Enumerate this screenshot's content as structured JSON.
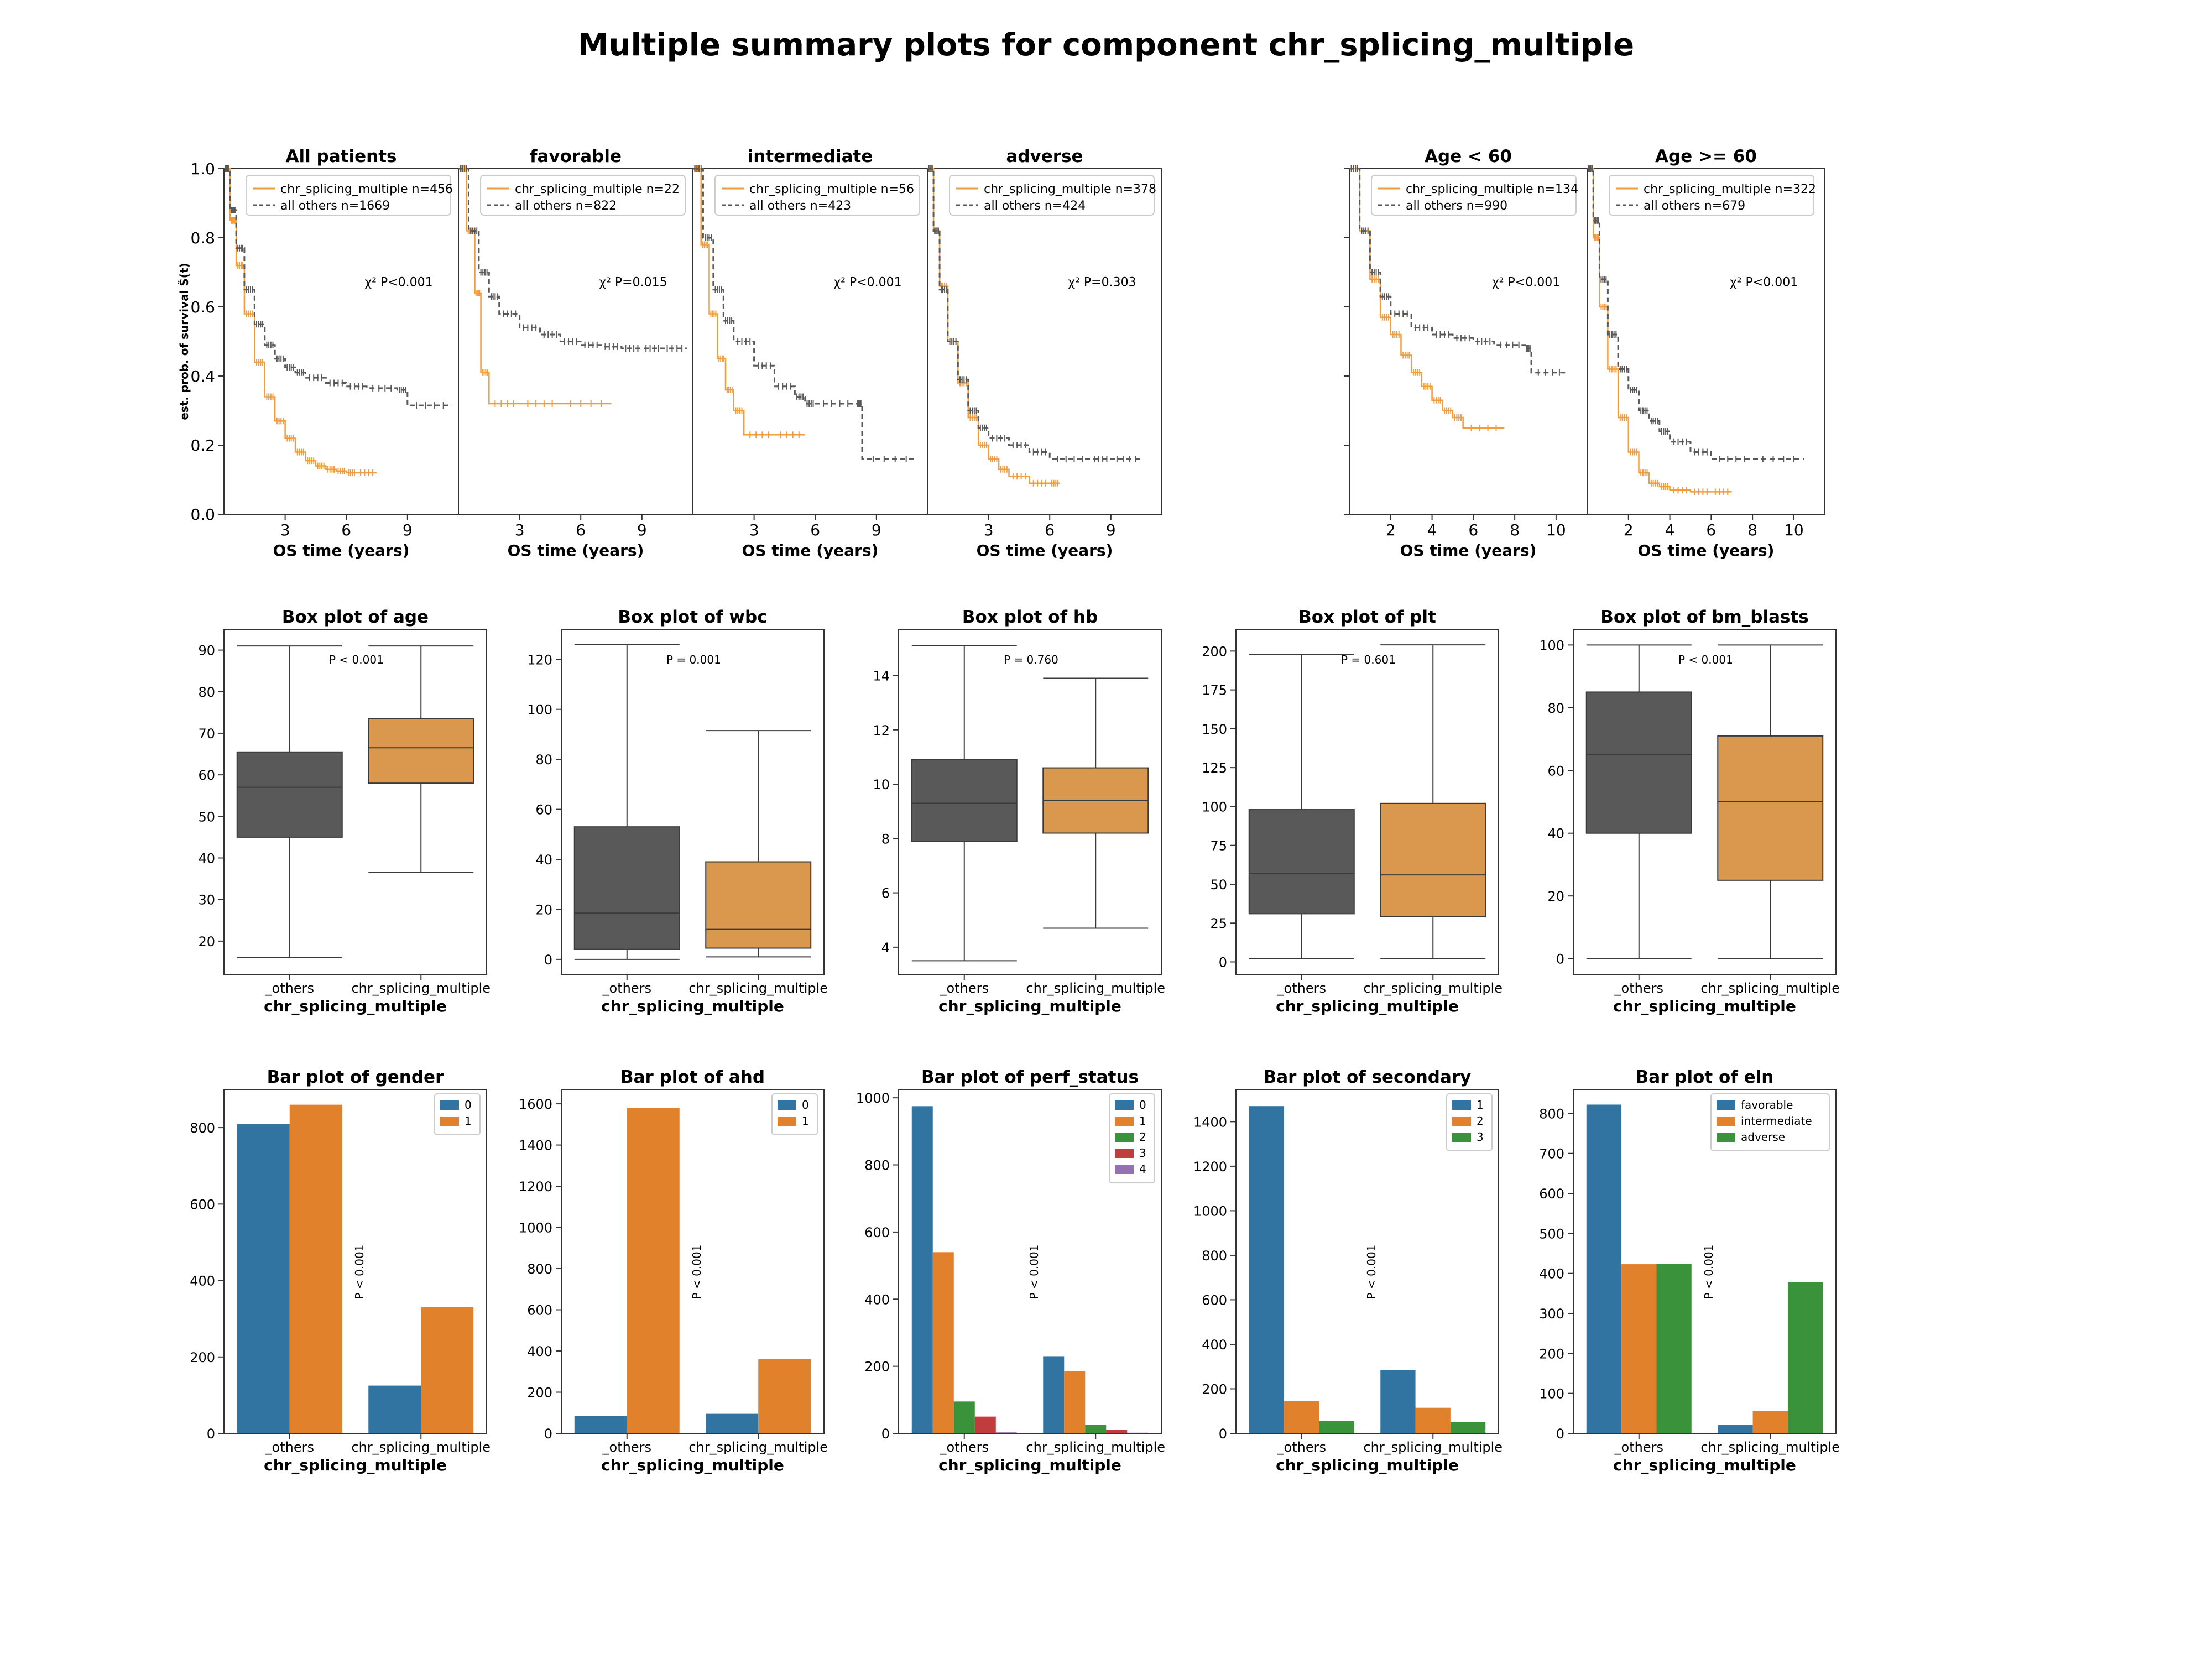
{
  "title": "Multiple summary plots for component chr_splicing_multiple",
  "colors": {
    "dark": "#595959",
    "orange": "#f39c3c",
    "box_orange": "#d9984e",
    "blue": "#3274a1",
    "bar_orange": "#e1812c",
    "green": "#3a923a",
    "red": "#c03d3e",
    "purple": "#9372b2"
  },
  "km": {
    "ylabel": "est. prob. of survival Ŝ(t)",
    "xlabel": "OS time (years)",
    "yticks": [
      "0.0",
      "0.2",
      "0.4",
      "0.6",
      "0.8",
      "1.0"
    ],
    "panels": [
      {
        "title": "All patients",
        "legend": [
          "chr_splicing_multiple n=456",
          "all others n=1669"
        ],
        "p": "χ² P<0.001",
        "xticks": [
          "3",
          "6",
          "9"
        ],
        "xlim": [
          0,
          11.5
        ],
        "chart_data": {
          "type": "line",
          "series": [
            {
              "name": "chr_splicing_multiple n=456",
              "x": [
                0,
                0.3,
                0.6,
                1,
                1.5,
                2,
                2.5,
                3,
                3.5,
                4,
                4.5,
                5,
                5.5,
                6,
                6.5,
                7.5
              ],
              "y": [
                1,
                0.85,
                0.72,
                0.58,
                0.44,
                0.34,
                0.27,
                0.22,
                0.18,
                0.155,
                0.14,
                0.13,
                0.125,
                0.12,
                0.12,
                0.12
              ]
            },
            {
              "name": "all others n=1669",
              "x": [
                0,
                0.3,
                0.6,
                1,
                1.5,
                2,
                2.5,
                3,
                3.5,
                4,
                5,
                6,
                7,
                8.5,
                9,
                11.2
              ],
              "y": [
                1,
                0.88,
                0.77,
                0.65,
                0.55,
                0.49,
                0.45,
                0.425,
                0.41,
                0.395,
                0.38,
                0.37,
                0.365,
                0.36,
                0.315,
                0.315
              ]
            }
          ]
        }
      },
      {
        "title": "favorable",
        "legend": [
          "chr_splicing_multiple n=22",
          "all others n=822"
        ],
        "p": "χ² P=0.015",
        "xticks": [
          "3",
          "6",
          "9"
        ],
        "xlim": [
          0,
          11.5
        ],
        "chart_data": {
          "type": "line",
          "series": [
            {
              "name": "chr_splicing_multiple n=22",
              "x": [
                0,
                0.4,
                0.8,
                1.1,
                1.5,
                3,
                5,
                7.5
              ],
              "y": [
                1,
                0.82,
                0.64,
                0.41,
                0.32,
                0.32,
                0.32,
                0.32
              ]
            },
            {
              "name": "all others n=822",
              "x": [
                0,
                0.5,
                1,
                1.5,
                2,
                3,
                4,
                5,
                6,
                7,
                8,
                9,
                10,
                11.2
              ],
              "y": [
                1,
                0.82,
                0.7,
                0.63,
                0.58,
                0.54,
                0.52,
                0.5,
                0.49,
                0.485,
                0.48,
                0.48,
                0.48,
                0.48
              ]
            }
          ]
        }
      },
      {
        "title": "intermediate",
        "legend": [
          "chr_splicing_multiple n=56",
          "all others n=423"
        ],
        "p": "χ² P<0.001",
        "xticks": [
          "3",
          "6",
          "9"
        ],
        "xlim": [
          0,
          11.5
        ],
        "chart_data": {
          "type": "line",
          "series": [
            {
              "name": "chr_splicing_multiple n=56",
              "x": [
                0,
                0.4,
                0.8,
                1.2,
                1.6,
                2,
                2.5,
                4,
                5.5
              ],
              "y": [
                1,
                0.78,
                0.58,
                0.45,
                0.36,
                0.3,
                0.23,
                0.23,
                0.23
              ]
            },
            {
              "name": "all others n=423",
              "x": [
                0,
                0.5,
                1,
                1.5,
                2,
                3,
                4,
                5,
                5.5,
                6,
                8,
                8.3,
                11
              ],
              "y": [
                1,
                0.8,
                0.65,
                0.56,
                0.5,
                0.43,
                0.37,
                0.34,
                0.32,
                0.32,
                0.32,
                0.16,
                0.16
              ]
            }
          ]
        }
      },
      {
        "title": "adverse",
        "legend": [
          "chr_splicing_multiple n=378",
          "all others n=424"
        ],
        "p": "χ² P=0.303",
        "xticks": [
          "3",
          "6",
          "9"
        ],
        "xlim": [
          0,
          11.5
        ],
        "chart_data": {
          "type": "line",
          "series": [
            {
              "name": "chr_splicing_multiple n=378",
              "x": [
                0,
                0.3,
                0.6,
                1,
                1.5,
                2,
                2.5,
                3,
                3.5,
                4,
                5,
                6,
                6.5
              ],
              "y": [
                1,
                0.82,
                0.66,
                0.5,
                0.38,
                0.28,
                0.2,
                0.16,
                0.13,
                0.11,
                0.09,
                0.09,
                0.09
              ]
            },
            {
              "name": "all others n=424",
              "x": [
                0,
                0.3,
                0.6,
                1,
                1.5,
                2,
                2.5,
                3,
                4,
                5,
                6,
                8,
                9,
                10.5
              ],
              "y": [
                1,
                0.82,
                0.65,
                0.5,
                0.39,
                0.3,
                0.25,
                0.22,
                0.2,
                0.18,
                0.16,
                0.16,
                0.16,
                0.16
              ]
            }
          ]
        }
      },
      {
        "title": "Age < 60",
        "legend": [
          "chr_splicing_multiple n=134",
          "all others n=990"
        ],
        "p": "χ² P<0.001",
        "xticks": [
          "2",
          "4",
          "6",
          "8",
          "10"
        ],
        "xlim": [
          0,
          11.5
        ],
        "chart_data": {
          "type": "line",
          "series": [
            {
              "name": "chr_splicing_multiple n=134",
              "x": [
                0,
                0.5,
                1,
                1.5,
                2,
                2.5,
                3,
                3.5,
                4,
                4.5,
                5,
                5.5,
                7.5
              ],
              "y": [
                1,
                0.82,
                0.68,
                0.57,
                0.52,
                0.46,
                0.41,
                0.37,
                0.33,
                0.3,
                0.28,
                0.25,
                0.25
              ]
            },
            {
              "name": "all others n=990",
              "x": [
                0,
                0.5,
                1,
                1.5,
                2,
                3,
                4,
                5,
                6,
                7,
                8.5,
                8.8,
                10.5
              ],
              "y": [
                1,
                0.82,
                0.7,
                0.63,
                0.58,
                0.54,
                0.52,
                0.51,
                0.5,
                0.49,
                0.48,
                0.41,
                0.41
              ]
            }
          ]
        }
      },
      {
        "title": "Age >= 60",
        "legend": [
          "chr_splicing_multiple n=322",
          "all others n=679"
        ],
        "p": "χ² P<0.001",
        "xticks": [
          "2",
          "4",
          "6",
          "8",
          "10"
        ],
        "xlim": [
          0,
          11.5
        ],
        "chart_data": {
          "type": "line",
          "series": [
            {
              "name": "chr_splicing_multiple n=322",
              "x": [
                0,
                0.3,
                0.6,
                1,
                1.5,
                2,
                2.5,
                3,
                3.5,
                4,
                5,
                6,
                7
              ],
              "y": [
                1,
                0.8,
                0.6,
                0.42,
                0.28,
                0.18,
                0.12,
                0.09,
                0.08,
                0.07,
                0.065,
                0.065,
                0.065
              ]
            },
            {
              "name": "all others n=679",
              "x": [
                0,
                0.3,
                0.6,
                1,
                1.5,
                2,
                2.5,
                3,
                3.5,
                4,
                5,
                6,
                8,
                10.5
              ],
              "y": [
                1,
                0.85,
                0.68,
                0.52,
                0.42,
                0.36,
                0.3,
                0.27,
                0.24,
                0.21,
                0.18,
                0.16,
                0.16,
                0.16
              ]
            }
          ]
        }
      }
    ]
  },
  "boxes": {
    "xlabel": "chr_splicing_multiple",
    "categories": [
      "_others",
      "chr_splicing_multiple"
    ],
    "panels": [
      {
        "title": "Box plot of age",
        "p": "P < 0.001",
        "yticks": [
          "20",
          "30",
          "40",
          "50",
          "60",
          "70",
          "80",
          "90"
        ],
        "chart_data": {
          "type": "box",
          "ylim": [
            12,
            95
          ],
          "boxes": [
            {
              "name": "_others",
              "whislo": 16,
              "q1": 45,
              "med": 57,
              "q3": 65.5,
              "whishi": 91
            },
            {
              "name": "chr_splicing_multiple",
              "whislo": 36.5,
              "q1": 58,
              "med": 66.5,
              "q3": 73.5,
              "whishi": 91
            }
          ]
        }
      },
      {
        "title": "Box plot of wbc",
        "p": "P = 0.001",
        "yticks": [
          "0",
          "20",
          "40",
          "60",
          "80",
          "100",
          "120"
        ],
        "chart_data": {
          "type": "box",
          "ylim": [
            -6,
            132
          ],
          "boxes": [
            {
              "name": "_others",
              "whislo": 0,
              "q1": 4,
              "med": 18.5,
              "q3": 53,
              "whishi": 126
            },
            {
              "name": "chr_splicing_multiple",
              "whislo": 1,
              "q1": 4.5,
              "med": 12,
              "q3": 39,
              "whishi": 91.5
            }
          ]
        }
      },
      {
        "title": "Box plot of hb",
        "p": "P = 0.760",
        "yticks": [
          "4",
          "6",
          "8",
          "10",
          "12",
          "14"
        ],
        "chart_data": {
          "type": "box",
          "ylim": [
            3,
            15.7
          ],
          "boxes": [
            {
              "name": "_others",
              "whislo": 3.5,
              "q1": 7.9,
              "med": 9.3,
              "q3": 10.9,
              "whishi": 15.1
            },
            {
              "name": "chr_splicing_multiple",
              "whislo": 4.7,
              "q1": 8.2,
              "med": 9.4,
              "q3": 10.6,
              "whishi": 13.9
            }
          ]
        }
      },
      {
        "title": "Box plot of plt",
        "p": "P = 0.601",
        "yticks": [
          "0",
          "25",
          "50",
          "75",
          "100",
          "125",
          "150",
          "175",
          "200"
        ],
        "chart_data": {
          "type": "box",
          "ylim": [
            -8,
            214
          ],
          "boxes": [
            {
              "name": "_others",
              "whislo": 2,
              "q1": 31,
              "med": 57,
              "q3": 98,
              "whishi": 198
            },
            {
              "name": "chr_splicing_multiple",
              "whislo": 2,
              "q1": 29,
              "med": 56,
              "q3": 102,
              "whishi": 204
            }
          ]
        }
      },
      {
        "title": "Box plot of bm_blasts",
        "p": "P < 0.001",
        "yticks": [
          "0",
          "20",
          "40",
          "60",
          "80",
          "100"
        ],
        "chart_data": {
          "type": "box",
          "ylim": [
            -5,
            105
          ],
          "boxes": [
            {
              "name": "_others",
              "whislo": 0,
              "q1": 40,
              "med": 65,
              "q3": 85,
              "whishi": 100
            },
            {
              "name": "chr_splicing_multiple",
              "whislo": 0,
              "q1": 25,
              "med": 50,
              "q3": 71,
              "whishi": 100
            }
          ]
        }
      }
    ]
  },
  "bars": {
    "xlabel": "chr_splicing_multiple",
    "categories": [
      "_others",
      "chr_splicing_multiple"
    ],
    "panels": [
      {
        "title": "Bar plot of gender",
        "p": "P < 0.001",
        "yticks": [
          "0",
          "200",
          "400",
          "600",
          "800"
        ],
        "ymax": 900,
        "chart_data": {
          "type": "bar",
          "categories": [
            "_others",
            "chr_splicing_multiple"
          ],
          "series": [
            {
              "name": "0",
              "values": [
                810,
                125
              ]
            },
            {
              "name": "1",
              "values": [
                860,
                330
              ]
            }
          ]
        }
      },
      {
        "title": "Bar plot of ahd",
        "p": "P < 0.001",
        "yticks": [
          "0",
          "200",
          "400",
          "600",
          "800",
          "1000",
          "1200",
          "1400",
          "1600"
        ],
        "ymax": 1670,
        "chart_data": {
          "type": "bar",
          "categories": [
            "_others",
            "chr_splicing_multiple"
          ],
          "series": [
            {
              "name": "0",
              "values": [
                85,
                95
              ]
            },
            {
              "name": "1",
              "values": [
                1580,
                360
              ]
            }
          ]
        }
      },
      {
        "title": "Bar plot of perf_status",
        "p": "P < 0.001",
        "yticks": [
          "0",
          "200",
          "400",
          "600",
          "800",
          "1000"
        ],
        "ymax": 1025,
        "chart_data": {
          "type": "bar",
          "categories": [
            "_others",
            "chr_splicing_multiple"
          ],
          "series": [
            {
              "name": "0",
              "values": [
                975,
                230
              ]
            },
            {
              "name": "1",
              "values": [
                540,
                185
              ]
            },
            {
              "name": "2",
              "values": [
                95,
                25
              ]
            },
            {
              "name": "3",
              "values": [
                50,
                10
              ]
            },
            {
              "name": "4",
              "values": [
                3,
                2
              ]
            }
          ]
        }
      },
      {
        "title": "Bar plot of secondary",
        "p": "P < 0.001",
        "yticks": [
          "0",
          "200",
          "400",
          "600",
          "800",
          "1000",
          "1200",
          "1400"
        ],
        "ymax": 1545,
        "chart_data": {
          "type": "bar",
          "categories": [
            "_others",
            "chr_splicing_multiple"
          ],
          "series": [
            {
              "name": "1",
              "values": [
                1470,
                285
              ]
            },
            {
              "name": "2",
              "values": [
                145,
                115
              ]
            },
            {
              "name": "3",
              "values": [
                55,
                50
              ]
            }
          ]
        }
      },
      {
        "title": "Bar plot of eln",
        "p": "P < 0.001",
        "yticks": [
          "0",
          "100",
          "200",
          "300",
          "400",
          "500",
          "600",
          "700",
          "800"
        ],
        "ymax": 860,
        "chart_data": {
          "type": "bar",
          "categories": [
            "_others",
            "chr_splicing_multiple"
          ],
          "series": [
            {
              "name": "favorable",
              "values": [
                822,
                22
              ]
            },
            {
              "name": "intermediate",
              "values": [
                423,
                56
              ]
            },
            {
              "name": "adverse",
              "values": [
                424,
                378
              ]
            }
          ]
        }
      }
    ]
  }
}
